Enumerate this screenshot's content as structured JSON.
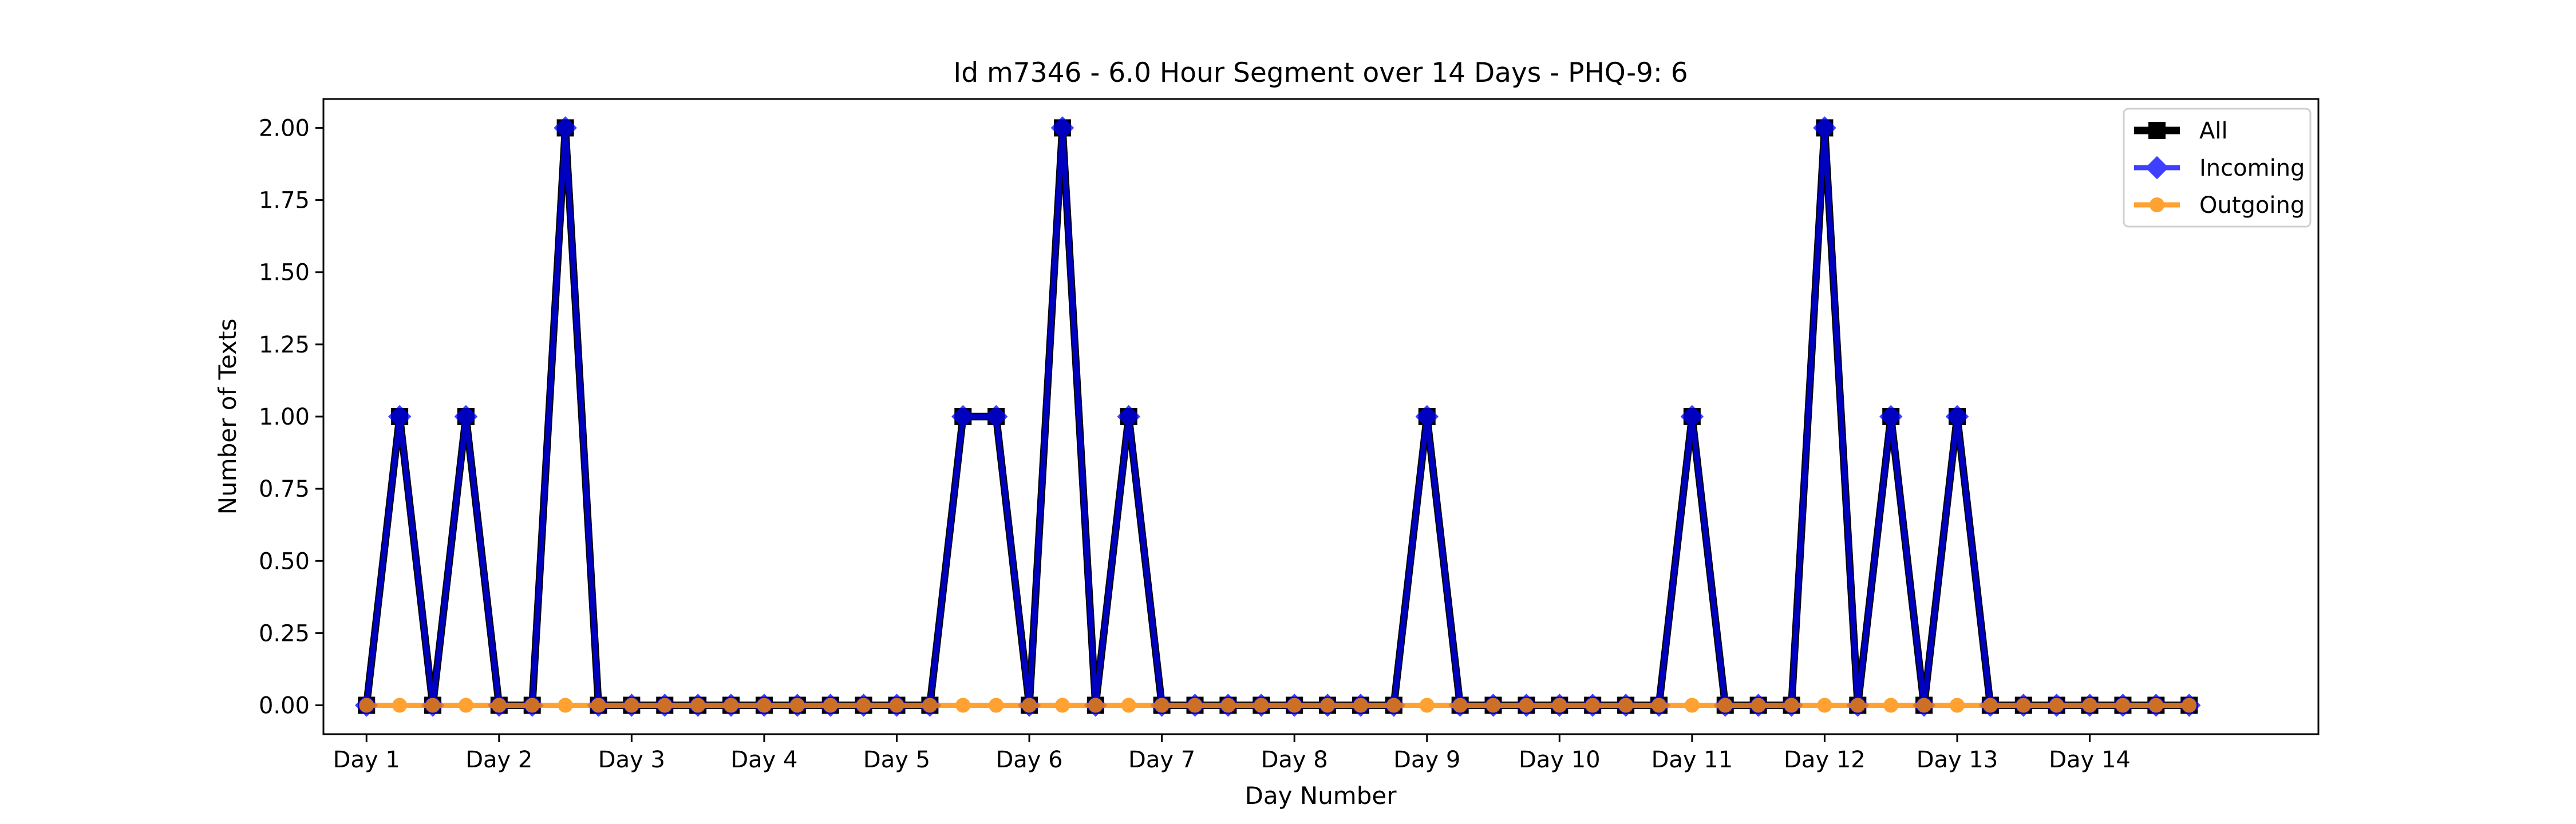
{
  "chart_data": {
    "type": "line",
    "title": "Id m7346 - 6.0 Hour Segment over 14 Days - PHQ-9: 6",
    "xlabel": "Day Number",
    "ylabel": "Number of Texts",
    "x_ticks": [
      "Day 1",
      "Day 2",
      "Day 3",
      "Day 4",
      "Day 5",
      "Day 6",
      "Day 7",
      "Day 8",
      "Day 9",
      "Day 10",
      "Day 11",
      "Day 12",
      "Day 13",
      "Day 14"
    ],
    "y_ticks": [
      "0.00",
      "0.25",
      "0.50",
      "0.75",
      "1.00",
      "1.25",
      "1.50",
      "1.75",
      "2.00"
    ],
    "ylim": [
      -0.1,
      2.1
    ],
    "xlim": [
      -1.3,
      58.9
    ],
    "legend_position": "top-right",
    "series": [
      {
        "name": "All",
        "color": "#000000",
        "marker": "square",
        "values": [
          0,
          1,
          0,
          1,
          0,
          0,
          2,
          0,
          0,
          0,
          0,
          0,
          0,
          0,
          0,
          0,
          0,
          0,
          1,
          1,
          0,
          2,
          0,
          1,
          0,
          0,
          0,
          0,
          0,
          0,
          0,
          0,
          1,
          0,
          0,
          0,
          0,
          0,
          0,
          0,
          1,
          0,
          0,
          0,
          2,
          0,
          1,
          0,
          1,
          0,
          0,
          0,
          0,
          0,
          0,
          0
        ]
      },
      {
        "name": "Incoming",
        "color": "#0000ff",
        "marker": "diamond",
        "values": [
          0,
          1,
          0,
          1,
          0,
          0,
          2,
          0,
          0,
          0,
          0,
          0,
          0,
          0,
          0,
          0,
          0,
          0,
          1,
          1,
          0,
          2,
          0,
          1,
          0,
          0,
          0,
          0,
          0,
          0,
          0,
          0,
          1,
          0,
          0,
          0,
          0,
          0,
          0,
          0,
          1,
          0,
          0,
          0,
          2,
          0,
          1,
          0,
          1,
          0,
          0,
          0,
          0,
          0,
          0,
          0
        ]
      },
      {
        "name": "Outgoing",
        "color": "#ff8c00",
        "marker": "circle",
        "values": [
          0,
          0,
          0,
          0,
          0,
          0,
          0,
          0,
          0,
          0,
          0,
          0,
          0,
          0,
          0,
          0,
          0,
          0,
          0,
          0,
          0,
          0,
          0,
          0,
          0,
          0,
          0,
          0,
          0,
          0,
          0,
          0,
          0,
          0,
          0,
          0,
          0,
          0,
          0,
          0,
          0,
          0,
          0,
          0,
          0,
          0,
          0,
          0,
          0,
          0,
          0,
          0,
          0,
          0,
          0,
          0
        ]
      }
    ]
  }
}
